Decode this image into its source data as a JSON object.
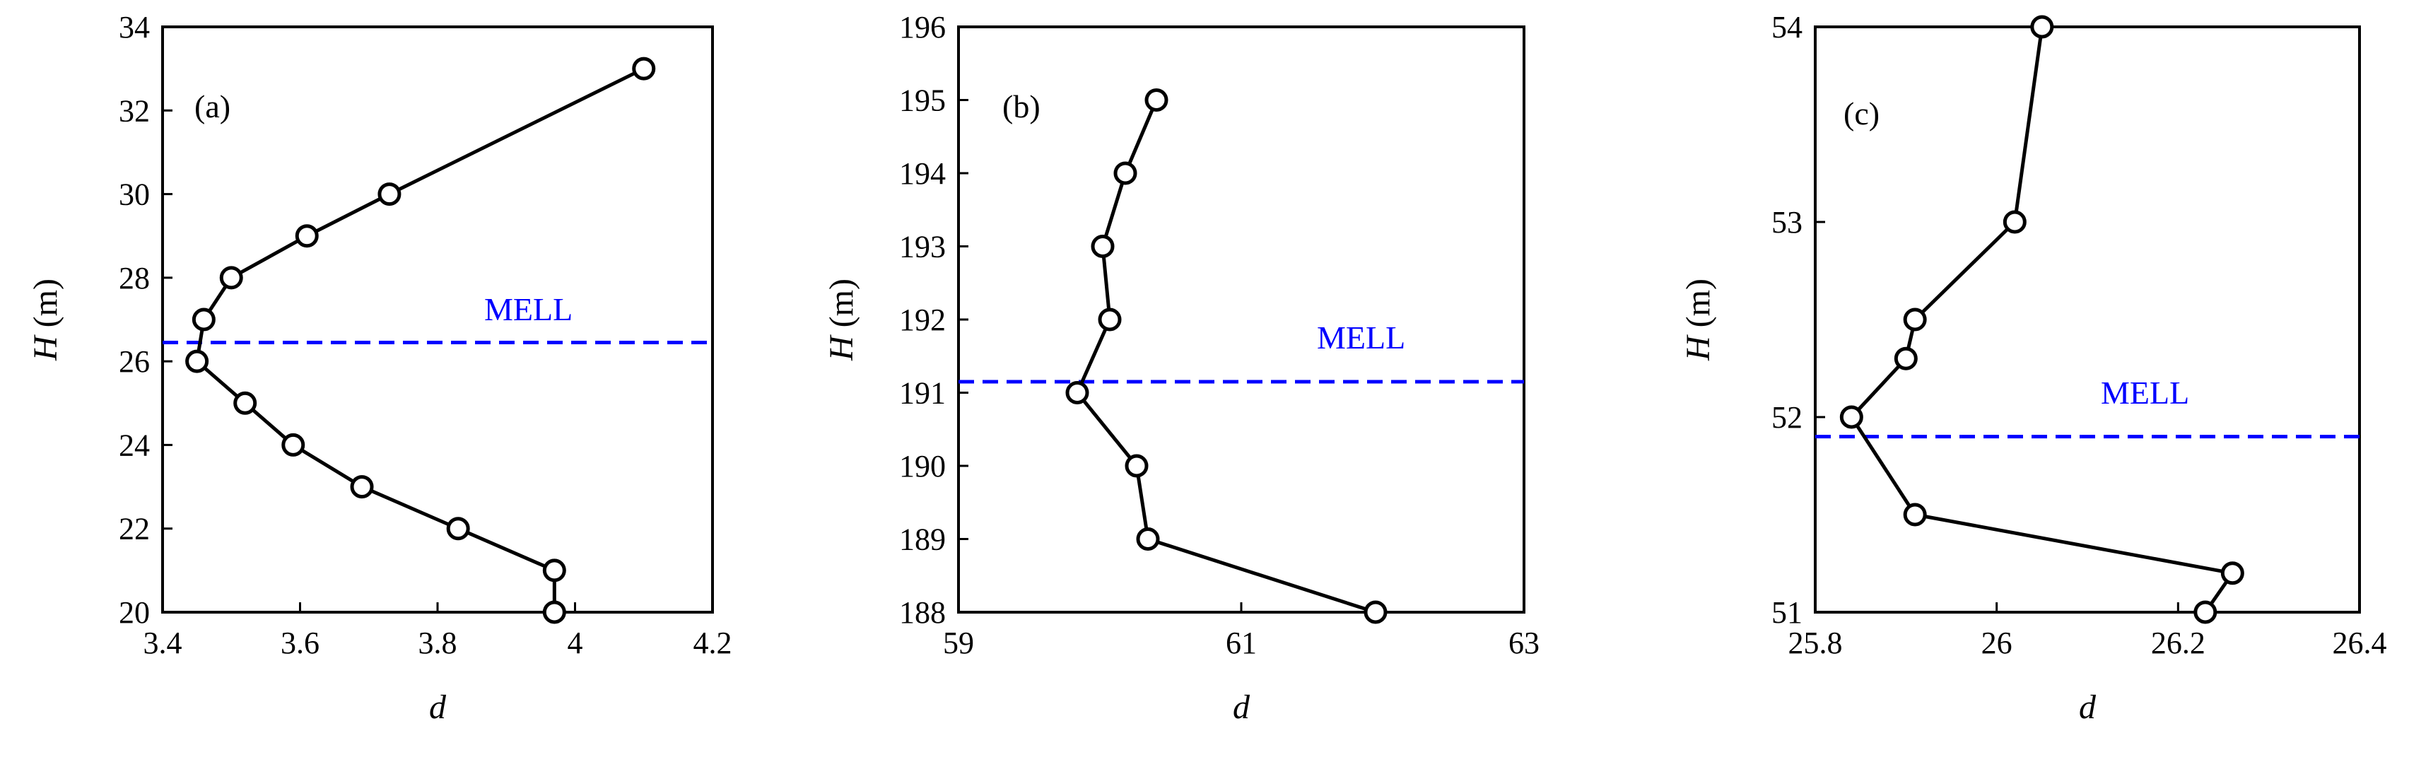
{
  "colors": {
    "series": "#000000",
    "mell": "#0000ff",
    "frame": "#000000",
    "background": "#ffffff"
  },
  "chart_data": [
    {
      "type": "line",
      "panel_label": "(a)",
      "xlabel": "d",
      "ylabel": "H",
      "ylabel_unit": " (m)",
      "xlim": [
        3.4,
        4.2
      ],
      "ylim": [
        20,
        34
      ],
      "xticks": [
        3.4,
        3.6,
        3.8,
        4.0,
        4.2
      ],
      "xtick_labels": [
        "3.4",
        "3.6",
        "3.8",
        "4",
        "4.2"
      ],
      "yticks": [
        20,
        22,
        24,
        26,
        28,
        30,
        32,
        34
      ],
      "ytick_labels": [
        "20",
        "22",
        "24",
        "26",
        "28",
        "30",
        "32",
        "34"
      ],
      "series": [
        {
          "x": [
            4.1,
            3.73,
            3.61,
            3.5,
            3.46,
            3.45,
            3.52,
            3.59,
            3.69,
            3.83,
            3.97,
            3.97
          ],
          "y": [
            33,
            30,
            29,
            28,
            27,
            26,
            25,
            24,
            23,
            22,
            21,
            20
          ]
        }
      ],
      "reference_line": {
        "label": "MELL",
        "y": 26.45,
        "style": "dashed"
      }
    },
    {
      "type": "line",
      "panel_label": "(b)",
      "xlabel": "d",
      "ylabel": "H",
      "ylabel_unit": " (m)",
      "xlim": [
        59,
        63
      ],
      "ylim": [
        188,
        196
      ],
      "xticks": [
        59,
        61,
        63
      ],
      "xtick_labels": [
        "59",
        "61",
        "63"
      ],
      "yticks": [
        188,
        189,
        190,
        191,
        192,
        193,
        194,
        195,
        196
      ],
      "ytick_labels": [
        "188",
        "189",
        "190",
        "191",
        "192",
        "193",
        "194",
        "195",
        "196"
      ],
      "series": [
        {
          "x": [
            60.4,
            60.18,
            60.02,
            60.07,
            59.84,
            60.26,
            60.34,
            61.95
          ],
          "y": [
            195,
            194,
            193,
            192,
            191,
            190,
            189,
            188
          ]
        }
      ],
      "reference_line": {
        "label": "MELL",
        "y": 191.15,
        "style": "dashed"
      }
    },
    {
      "type": "line",
      "panel_label": "(c)",
      "xlabel": "d",
      "ylabel": "H",
      "ylabel_unit": " (m)",
      "xlim": [
        25.8,
        26.4
      ],
      "ylim": [
        51,
        54
      ],
      "xticks": [
        25.8,
        26.0,
        26.2,
        26.4
      ],
      "xtick_labels": [
        "25.8",
        "26",
        "26.2",
        "26.4"
      ],
      "yticks": [
        51,
        52,
        53,
        54
      ],
      "ytick_labels": [
        "51",
        "52",
        "53",
        "54"
      ],
      "series": [
        {
          "x": [
            26.05,
            26.02,
            25.91,
            25.9,
            25.84,
            25.91,
            26.26,
            26.23
          ],
          "y": [
            54.0,
            53.0,
            52.5,
            52.3,
            52.0,
            51.5,
            51.2,
            51.0
          ]
        }
      ],
      "reference_line": {
        "label": "MELL",
        "y": 51.9,
        "style": "dashed"
      }
    }
  ]
}
